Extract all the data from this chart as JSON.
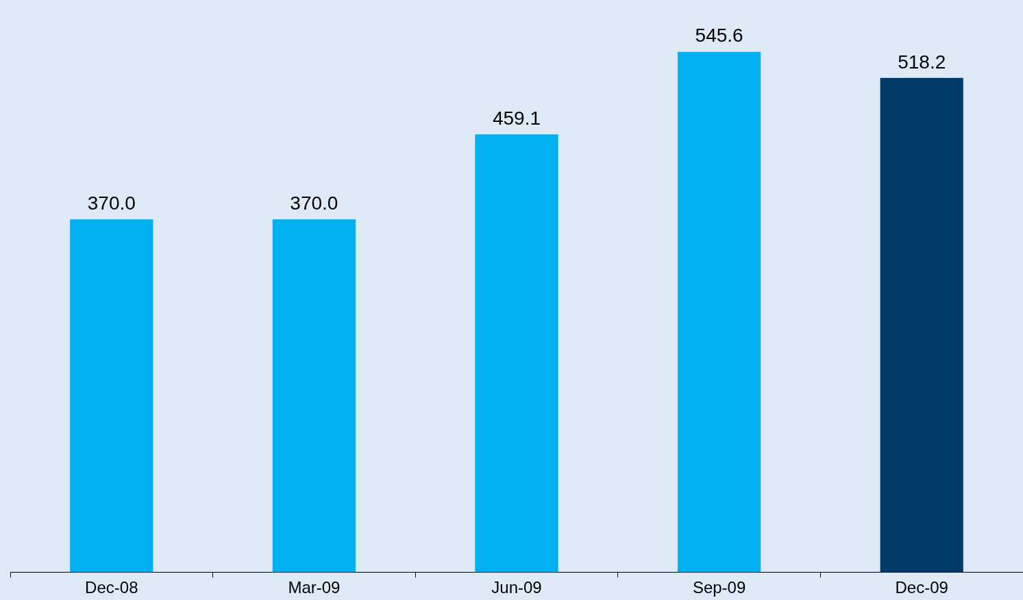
{
  "chart_data": {
    "type": "bar",
    "categories": [
      "Dec-08",
      "Mar-09",
      "Jun-09",
      "Sep-09",
      "Dec-09"
    ],
    "values": [
      370.0,
      370.0,
      459.1,
      545.6,
      518.2
    ],
    "colors": [
      "#00b0f0",
      "#00b0f0",
      "#00b0f0",
      "#00b0f0",
      "#003a6b"
    ],
    "value_labels": [
      "370.0",
      "370.0",
      "459.1",
      "545.6",
      "518.2"
    ],
    "grid": false,
    "legend": false
  }
}
